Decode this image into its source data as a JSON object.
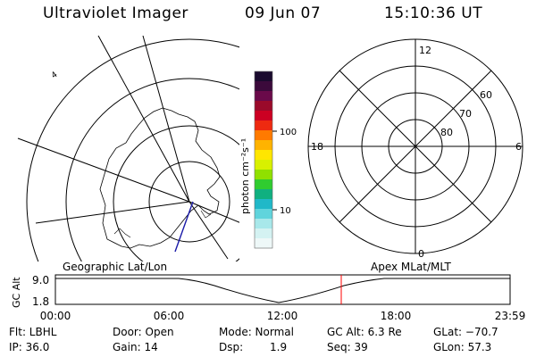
{
  "header": {
    "title": "Ultraviolet Imager",
    "date": "09 Jun 07",
    "time": "15:10:36 UT"
  },
  "left_map": {
    "caption": "Geographic Lat/Lon",
    "grid_label": "4"
  },
  "colorbar": {
    "unit_label": "photon cm⁻²s⁻¹",
    "ticks": [
      "100",
      "10"
    ],
    "colors": [
      "#1a0a2e",
      "#3b0a3b",
      "#6a0a4a",
      "#9a0a2a",
      "#cc0022",
      "#ee2a10",
      "#ff7a00",
      "#ffb300",
      "#ffe600",
      "#d8f000",
      "#90e000",
      "#30cc30",
      "#10b080",
      "#20b8c8",
      "#60d4dc",
      "#a8e8ea",
      "#d4f2f2",
      "#eef8f8"
    ]
  },
  "polar_plot": {
    "caption": "Apex MLat/MLT",
    "mlt_labels": {
      "top": "12",
      "left": "18",
      "right": "6",
      "bottom": "0"
    },
    "lat_labels": [
      "60",
      "70",
      "80"
    ]
  },
  "timeline": {
    "ylabel": "GC Alt",
    "yticks": [
      "9.0",
      "1.8"
    ],
    "xticks": [
      "00:00",
      "06:00",
      "12:00",
      "18:00",
      "23:59"
    ],
    "marker_color": "#ff0000"
  },
  "info": {
    "filter": "Flt: LBHL",
    "ip": "IP: 36.0",
    "door": "Door: Open",
    "gain": "Gain: 14",
    "mode": "Mode: Normal",
    "dsp": "Dsp:",
    "dsp_value": "1.9",
    "gc_alt": "GC Alt: 6.3 Re",
    "seq": "Seq: 39",
    "glat": "GLat: −70.7",
    "glon": "GLon:  57.3"
  }
}
